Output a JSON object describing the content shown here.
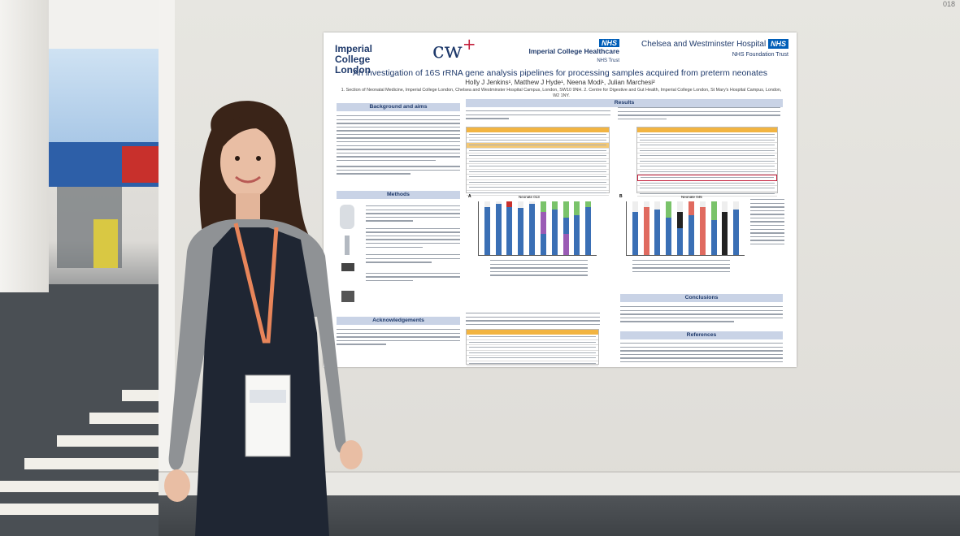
{
  "poster": {
    "logo_imperial": "Imperial College London",
    "logo_cw": "cw",
    "logo_cw_plus": "+",
    "logo_ich": "Imperial College Healthcare",
    "logo_ich_trust": "NHS Trust",
    "logo_cwh": "Chelsea and Westminster Hospital",
    "logo_cwh_trust": "NHS Foundation Trust",
    "nhs_badge": "NHS",
    "title": "An investigation of 16S rRNA gene analysis pipelines for processing samples acquired from preterm neonates",
    "authors": "Holly J Jenkins¹, Matthew J Hyde¹, Neena Modi¹, Julian Marchesi²",
    "affiliations": "1. Section of Neonatal Medicine, Imperial College London, Chelsea and Westminster Hospital Campus, London, SW10 9NH. 2. Centre for Digestive and Gut Health, Imperial College London, St Mary's Hospital Campus, London, W2 1NY.",
    "sections": {
      "background": "Background and aims",
      "methods": "Methods",
      "acknowledgements": "Acknowledgements",
      "results": "Results",
      "conclusions": "Conclusions",
      "references": "References"
    },
    "chart_label_a": "A",
    "chart_label_b": "B",
    "chart_title_a": "Neonate 013",
    "chart_title_b": "Neonate 045"
  },
  "board_corner": "018",
  "colors": {
    "navy": "#1f3a6b",
    "section_header": "#c9d3e6",
    "table_header": "#f2b441",
    "nhs_blue": "#005eb8"
  }
}
